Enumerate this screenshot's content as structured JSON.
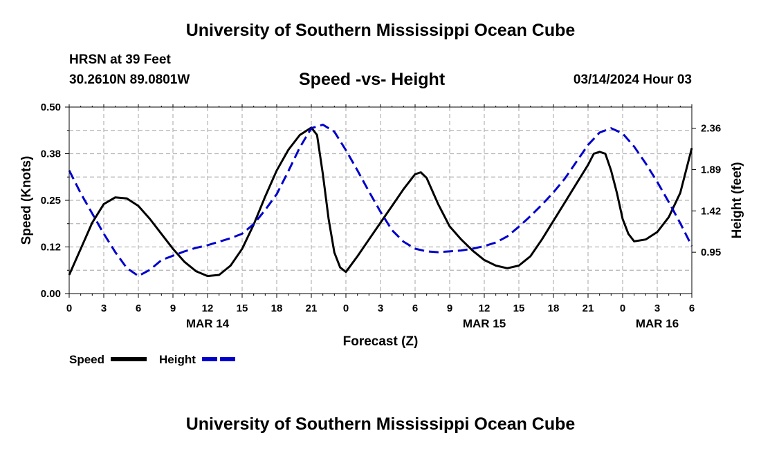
{
  "header": {
    "title": "University of Southern Mississippi Ocean Cube",
    "station": "HRSN at 39 Feet",
    "coords": "30.2610N  89.0801W",
    "chart_title": "Speed -vs- Height",
    "date": "03/14/2024 Hour 03"
  },
  "footer": {
    "title": "University of Southern Mississippi Ocean Cube"
  },
  "colors": {
    "speed": "#000000",
    "height": "#0000cc",
    "grid": "#b4b4b4"
  },
  "chart_data": {
    "type": "line",
    "title": "Speed -vs- Height",
    "xlabel": "Forecast (Z)",
    "ylabel": "Speed (Knots)",
    "y2label": "Height (feet)",
    "x_range": [
      0,
      54
    ],
    "ylim": [
      0,
      0.5
    ],
    "y2lim": [
      0.48,
      2.6
    ],
    "y_ticks": [
      0.0,
      0.125,
      0.25,
      0.375,
      0.5
    ],
    "y_tick_labels": [
      "0.00",
      "0.12",
      "0.25",
      "0.38",
      "0.50"
    ],
    "y2_ticks": [
      0.95,
      1.42,
      1.89,
      2.36
    ],
    "y2_tick_labels": [
      "0.95",
      "1.42",
      "1.89",
      "2.36"
    ],
    "x_ticks": [
      0,
      3,
      6,
      9,
      12,
      15,
      18,
      21,
      24,
      27,
      30,
      33,
      36,
      39,
      42,
      45,
      48,
      51,
      54
    ],
    "x_tick_labels": [
      "0",
      "3",
      "6",
      "9",
      "12",
      "15",
      "18",
      "21",
      "0",
      "3",
      "6",
      "9",
      "12",
      "15",
      "18",
      "21",
      "0",
      "3",
      "6"
    ],
    "date_labels": [
      {
        "x": 12,
        "label": "MAR 14"
      },
      {
        "x": 36,
        "label": "MAR 15"
      },
      {
        "x": 51,
        "label": "MAR 16"
      }
    ],
    "legend": [
      {
        "name": "Speed",
        "style": "solid"
      },
      {
        "name": "Height",
        "style": "dashed"
      }
    ],
    "series": [
      {
        "name": "Speed",
        "axis": "left",
        "points": [
          [
            0,
            0.05
          ],
          [
            1,
            0.12
          ],
          [
            2,
            0.19
          ],
          [
            3,
            0.24
          ],
          [
            4,
            0.258
          ],
          [
            5,
            0.255
          ],
          [
            6,
            0.235
          ],
          [
            7,
            0.2
          ],
          [
            8,
            0.16
          ],
          [
            9,
            0.12
          ],
          [
            10,
            0.085
          ],
          [
            11,
            0.06
          ],
          [
            12,
            0.047
          ],
          [
            13,
            0.05
          ],
          [
            14,
            0.075
          ],
          [
            15,
            0.12
          ],
          [
            16,
            0.185
          ],
          [
            17,
            0.26
          ],
          [
            18,
            0.33
          ],
          [
            19,
            0.385
          ],
          [
            20,
            0.425
          ],
          [
            21,
            0.445
          ],
          [
            21.5,
            0.425
          ],
          [
            22,
            0.32
          ],
          [
            22.5,
            0.2
          ],
          [
            23,
            0.11
          ],
          [
            23.5,
            0.07
          ],
          [
            24,
            0.058
          ],
          [
            25,
            0.1
          ],
          [
            26,
            0.145
          ],
          [
            27,
            0.19
          ],
          [
            28,
            0.235
          ],
          [
            29,
            0.28
          ],
          [
            30,
            0.32
          ],
          [
            30.5,
            0.325
          ],
          [
            31,
            0.31
          ],
          [
            32,
            0.24
          ],
          [
            33,
            0.18
          ],
          [
            34,
            0.145
          ],
          [
            35,
            0.115
          ],
          [
            36,
            0.09
          ],
          [
            37,
            0.075
          ],
          [
            38,
            0.068
          ],
          [
            39,
            0.075
          ],
          [
            40,
            0.1
          ],
          [
            41,
            0.145
          ],
          [
            42,
            0.195
          ],
          [
            43,
            0.245
          ],
          [
            44,
            0.295
          ],
          [
            45,
            0.345
          ],
          [
            45.5,
            0.375
          ],
          [
            46,
            0.38
          ],
          [
            46.5,
            0.375
          ],
          [
            47,
            0.33
          ],
          [
            47.5,
            0.27
          ],
          [
            48,
            0.2
          ],
          [
            48.5,
            0.16
          ],
          [
            49,
            0.14
          ],
          [
            50,
            0.145
          ],
          [
            51,
            0.165
          ],
          [
            52,
            0.205
          ],
          [
            53,
            0.27
          ],
          [
            54,
            0.39
          ]
        ]
      },
      {
        "name": "Height",
        "axis": "right",
        "points": [
          [
            0,
            1.88
          ],
          [
            1,
            1.62
          ],
          [
            2,
            1.39
          ],
          [
            3,
            1.16
          ],
          [
            4,
            0.95
          ],
          [
            5,
            0.77
          ],
          [
            6,
            0.68
          ],
          [
            7,
            0.75
          ],
          [
            8,
            0.86
          ],
          [
            9,
            0.91
          ],
          [
            10,
            0.96
          ],
          [
            11,
            1.0
          ],
          [
            12,
            1.03
          ],
          [
            13,
            1.07
          ],
          [
            14,
            1.11
          ],
          [
            15,
            1.16
          ],
          [
            16,
            1.27
          ],
          [
            17,
            1.43
          ],
          [
            18,
            1.61
          ],
          [
            19,
            1.87
          ],
          [
            20,
            2.14
          ],
          [
            21,
            2.36
          ],
          [
            22,
            2.4
          ],
          [
            23,
            2.32
          ],
          [
            24,
            2.11
          ],
          [
            25,
            1.88
          ],
          [
            26,
            1.64
          ],
          [
            27,
            1.41
          ],
          [
            28,
            1.2
          ],
          [
            29,
            1.07
          ],
          [
            30,
            0.99
          ],
          [
            31,
            0.96
          ],
          [
            32,
            0.95
          ],
          [
            33,
            0.96
          ],
          [
            34,
            0.97
          ],
          [
            35,
            0.99
          ],
          [
            36,
            1.02
          ],
          [
            37,
            1.06
          ],
          [
            38,
            1.13
          ],
          [
            39,
            1.24
          ],
          [
            40,
            1.36
          ],
          [
            41,
            1.49
          ],
          [
            42,
            1.63
          ],
          [
            43,
            1.79
          ],
          [
            44,
            1.98
          ],
          [
            45,
            2.17
          ],
          [
            46,
            2.31
          ],
          [
            47,
            2.36
          ],
          [
            48,
            2.3
          ],
          [
            49,
            2.15
          ],
          [
            50,
            1.96
          ],
          [
            51,
            1.75
          ],
          [
            52,
            1.52
          ],
          [
            53,
            1.28
          ],
          [
            54,
            1.02
          ]
        ]
      }
    ]
  }
}
